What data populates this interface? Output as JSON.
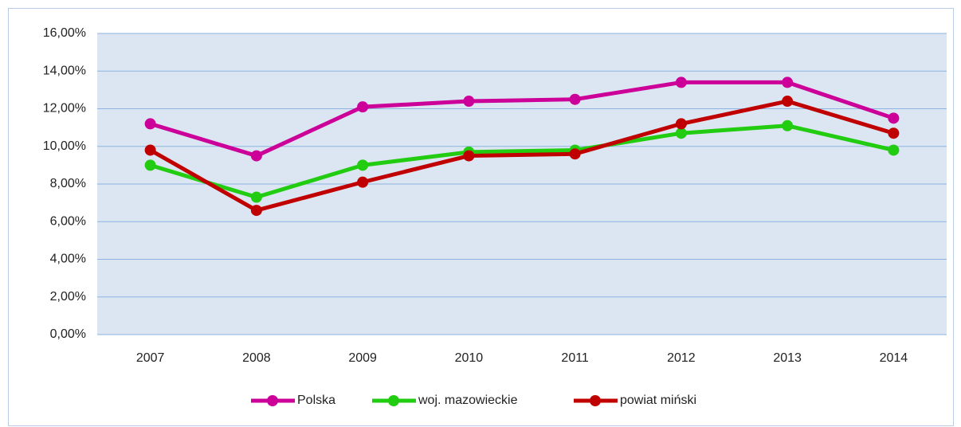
{
  "chart_data": {
    "type": "line",
    "categories": [
      "2007",
      "2008",
      "2009",
      "2010",
      "2011",
      "2012",
      "2013",
      "2014"
    ],
    "series": [
      {
        "name": "Polska",
        "color": "#cc0099",
        "values": [
          11.2,
          9.5,
          12.1,
          12.4,
          12.5,
          13.4,
          13.4,
          11.5
        ]
      },
      {
        "name": "woj. mazowieckie",
        "color": "#22cc11",
        "values": [
          9.0,
          7.3,
          9.0,
          9.7,
          9.8,
          10.7,
          11.1,
          9.8
        ]
      },
      {
        "name": "powiat miński",
        "color": "#c00000",
        "values": [
          9.8,
          6.6,
          8.1,
          9.5,
          9.6,
          11.2,
          12.4,
          10.7
        ]
      }
    ],
    "ylim": [
      0,
      16
    ],
    "yticks": [
      {
        "value": 0,
        "label": "0,00%"
      },
      {
        "value": 2,
        "label": "2,00%"
      },
      {
        "value": 4,
        "label": "4,00%"
      },
      {
        "value": 6,
        "label": "6,00%"
      },
      {
        "value": 8,
        "label": "8,00%"
      },
      {
        "value": 10,
        "label": "10,00%"
      },
      {
        "value": 12,
        "label": "12,00%"
      },
      {
        "value": 14,
        "label": "14,00%"
      },
      {
        "value": 16,
        "label": "16,00%"
      }
    ],
    "grid": true,
    "legend": "bottom"
  }
}
